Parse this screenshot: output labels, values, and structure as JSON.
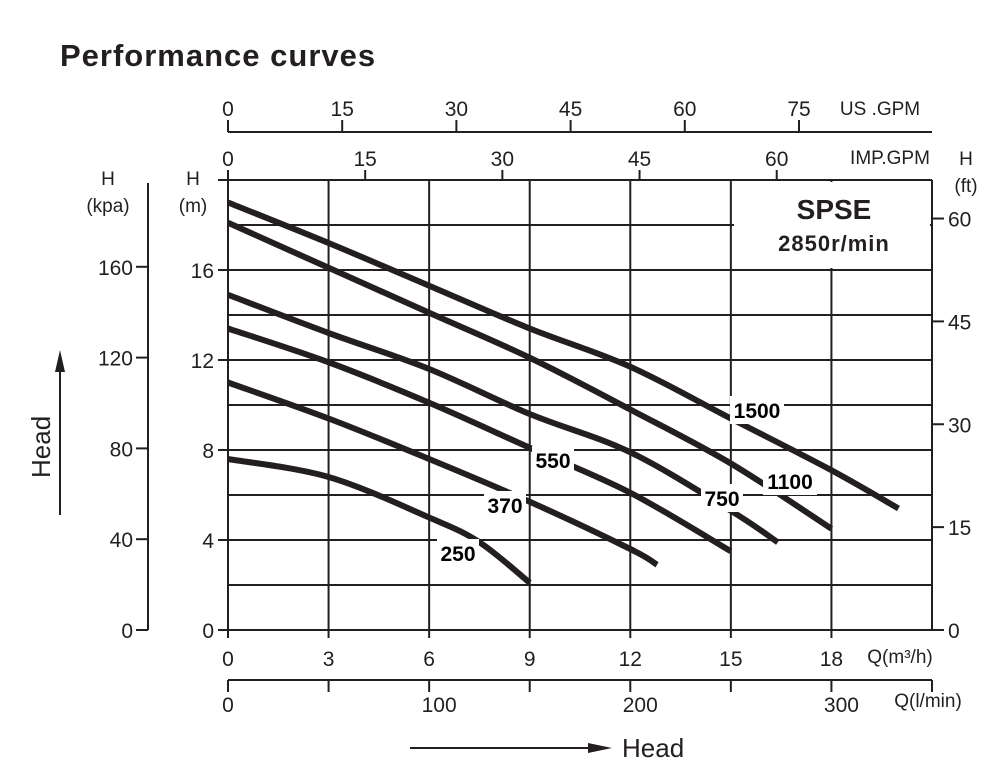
{
  "title": "Performance curves",
  "chart_data": {
    "type": "line",
    "title": "Performance curves",
    "annotation": {
      "model": "SPSE",
      "speed": "2850r/min"
    },
    "x": {
      "label": "Q(m³/h)",
      "range": [
        0,
        21
      ],
      "ticks": [
        0,
        3,
        6,
        9,
        12,
        15,
        18
      ]
    },
    "y": {
      "label_top": "H",
      "label_unit": "(m)",
      "range": [
        0,
        20
      ],
      "ticks": [
        0,
        4,
        8,
        12,
        16
      ]
    },
    "x_top_us": {
      "label": "US .GPM",
      "ticks": [
        0,
        15,
        30,
        45,
        60,
        75
      ]
    },
    "x_top_imp": {
      "label": "IMP.GPM",
      "ticks": [
        0,
        15,
        30,
        45,
        60
      ]
    },
    "x_bottom_lmin": {
      "label": "Q(l/min)",
      "ticks": [
        0,
        100,
        200,
        300
      ]
    },
    "y_left_kpa": {
      "label_top": "H",
      "label_unit": "(kpa)",
      "ticks": [
        0,
        40,
        80,
        120,
        160
      ]
    },
    "y_right_ft": {
      "label_top": "H",
      "label_unit": "(ft)",
      "ticks": [
        0,
        15,
        30,
        45,
        60
      ]
    },
    "side_label": "Head",
    "bottom_label": "Head",
    "grid": true,
    "series": [
      {
        "name": "250",
        "points": [
          [
            0,
            7.6
          ],
          [
            3,
            6.8
          ],
          [
            6,
            5.0
          ],
          [
            7.5,
            3.9
          ],
          [
            9,
            2.1
          ]
        ]
      },
      {
        "name": "370",
        "points": [
          [
            0,
            11.0
          ],
          [
            3,
            9.4
          ],
          [
            6,
            7.6
          ],
          [
            9,
            5.7
          ],
          [
            12,
            3.6
          ],
          [
            12.8,
            2.9
          ]
        ]
      },
      {
        "name": "550",
        "points": [
          [
            0,
            13.4
          ],
          [
            3,
            11.9
          ],
          [
            6,
            10.1
          ],
          [
            9,
            8.1
          ],
          [
            12,
            6.1
          ],
          [
            15,
            3.5
          ]
        ]
      },
      {
        "name": "750",
        "points": [
          [
            0,
            14.9
          ],
          [
            3,
            13.2
          ],
          [
            6,
            11.6
          ],
          [
            9,
            9.6
          ],
          [
            12,
            7.9
          ],
          [
            15,
            5.3
          ],
          [
            16.4,
            3.9
          ]
        ]
      },
      {
        "name": "1100",
        "points": [
          [
            0,
            18.1
          ],
          [
            3,
            16.1
          ],
          [
            6,
            14.1
          ],
          [
            9,
            12.1
          ],
          [
            12,
            9.8
          ],
          [
            15,
            7.4
          ],
          [
            18,
            4.5
          ]
        ]
      },
      {
        "name": "1500",
        "points": [
          [
            0,
            19.0
          ],
          [
            3,
            17.2
          ],
          [
            6,
            15.3
          ],
          [
            9,
            13.4
          ],
          [
            12,
            11.7
          ],
          [
            15,
            9.4
          ],
          [
            18,
            7.1
          ],
          [
            20,
            5.4
          ]
        ]
      }
    ]
  }
}
